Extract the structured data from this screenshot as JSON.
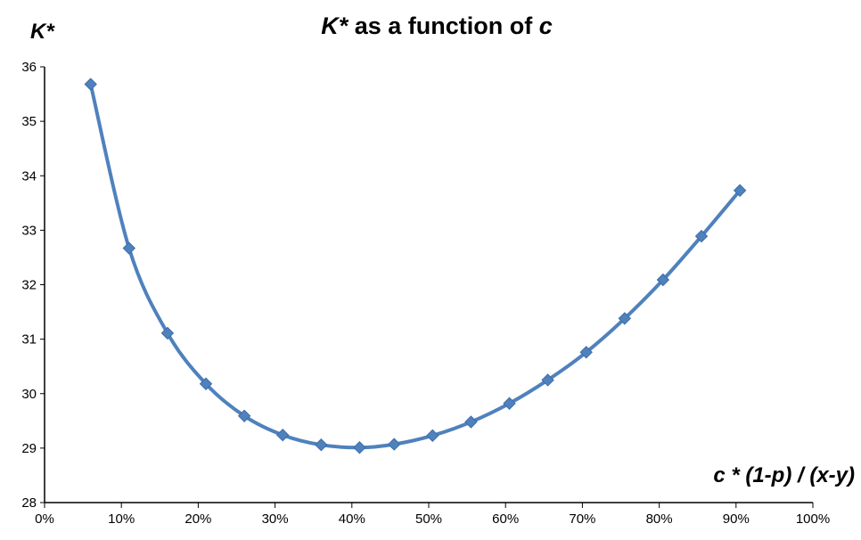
{
  "chart_data": {
    "type": "line",
    "title_parts": [
      {
        "text": "K*",
        "italic": true
      },
      {
        "text": " as a function of ",
        "italic": false
      },
      {
        "text": "c",
        "italic": true
      }
    ],
    "title": "K* as a function of c",
    "ylabel": "K*",
    "xlabel": "c * (1-p) / (x-y)",
    "xlim": [
      0,
      1
    ],
    "ylim": [
      28,
      36
    ],
    "x_ticks": [
      0,
      0.1,
      0.2,
      0.3,
      0.4,
      0.5,
      0.6,
      0.7,
      0.8,
      0.9,
      1.0
    ],
    "x_tick_labels": [
      "0%",
      "10%",
      "20%",
      "30%",
      "40%",
      "50%",
      "60%",
      "70%",
      "80%",
      "90%",
      "100%"
    ],
    "y_ticks": [
      28,
      29,
      30,
      31,
      32,
      33,
      34,
      35,
      36
    ],
    "y_tick_labels": [
      "28",
      "29",
      "30",
      "31",
      "32",
      "33",
      "34",
      "35",
      "36"
    ],
    "grid": false,
    "legend": "none",
    "series": [
      {
        "color": "#4f81bd",
        "marker": "diamond",
        "smooth": true,
        "x": [
          0.06,
          0.11,
          0.16,
          0.21,
          0.26,
          0.31,
          0.36,
          0.41,
          0.455,
          0.505,
          0.555,
          0.605,
          0.655,
          0.705,
          0.755,
          0.805,
          0.855,
          0.905
        ],
        "y": [
          35.68,
          32.67,
          31.11,
          30.18,
          29.59,
          29.24,
          29.06,
          29.01,
          29.07,
          29.23,
          29.48,
          29.82,
          30.25,
          30.76,
          31.38,
          32.09,
          32.89,
          33.73
        ]
      }
    ]
  }
}
